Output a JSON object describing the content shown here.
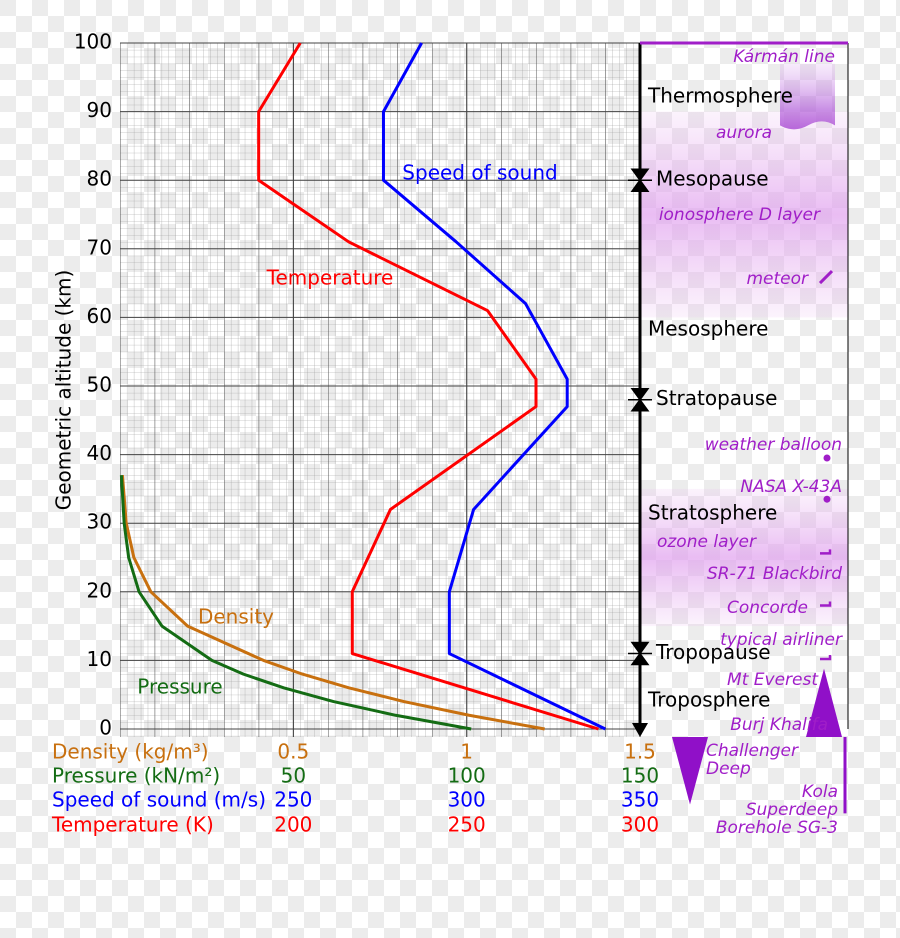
{
  "chart_data": {
    "type": "line",
    "y_label": "Geometric altitude (km)",
    "ylim": [
      0,
      100
    ],
    "yticks": [
      0,
      10,
      20,
      30,
      40,
      50,
      60,
      70,
      80,
      90,
      100
    ],
    "grid": true,
    "x_axes": [
      {
        "label": "Density (kg/m³)",
        "color": "#c8700f",
        "xlim": [
          0,
          1.5
        ],
        "xticks": [
          0.5,
          1,
          1.5
        ]
      },
      {
        "label": "Pressure (kN/m²)",
        "color": "#146c14",
        "xlim": [
          0,
          150
        ],
        "xticks": [
          50,
          100,
          150
        ]
      },
      {
        "label": "Speed of sound (m/s)",
        "color": "#0000ff",
        "xlim": [
          200,
          350
        ],
        "xticks": [
          250,
          300,
          350
        ]
      },
      {
        "label": "Temperature (K)",
        "color": "#ff0000",
        "xlim": [
          150,
          300
        ],
        "xticks": [
          200,
          250,
          300
        ]
      }
    ],
    "series": [
      {
        "name": "Speed of sound",
        "axis": 2,
        "color": "#0000ff",
        "altitude": [
          0,
          11,
          20,
          32,
          47,
          51,
          62,
          71,
          80,
          90,
          100
        ],
        "values": [
          340,
          295,
          295,
          302,
          329,
          329,
          317,
          297,
          276,
          276,
          287
        ]
      },
      {
        "name": "Temperature",
        "axis": 3,
        "color": "#ff0000",
        "altitude": [
          0,
          11,
          20,
          32,
          47,
          51,
          61,
          71,
          80,
          90,
          100
        ],
        "values": [
          288,
          217,
          217,
          228,
          270,
          270,
          256,
          216,
          190,
          190,
          202
        ]
      },
      {
        "name": "Density",
        "axis": 0,
        "color": "#c8700f",
        "altitude": [
          0,
          2,
          4,
          6,
          8,
          10,
          15,
          20,
          25,
          30,
          37
        ],
        "values": [
          1.225,
          1.007,
          0.819,
          0.66,
          0.526,
          0.414,
          0.195,
          0.089,
          0.04,
          0.018,
          0.007
        ]
      },
      {
        "name": "Pressure",
        "axis": 1,
        "color": "#146c14",
        "altitude": [
          0,
          2,
          4,
          6,
          8,
          10,
          15,
          20,
          25,
          30,
          37
        ],
        "values": [
          101.3,
          79.5,
          61.6,
          47.2,
          35.6,
          26.5,
          12.1,
          5.5,
          2.5,
          1.2,
          0.4
        ]
      }
    ],
    "boundaries": [
      {
        "name": "Mesopause",
        "altitude": 80
      },
      {
        "name": "Stratopause",
        "altitude": 48
      },
      {
        "name": "Tropopause",
        "altitude": 11
      }
    ],
    "layers": [
      "Thermosphere",
      "Mesosphere",
      "Stratosphere",
      "Troposphere"
    ],
    "annotations": [
      {
        "lines": [
          "Kármán line"
        ],
        "altitude": 100
      },
      {
        "lines": [
          "aurora"
        ],
        "range": [
          88,
          97
        ]
      },
      {
        "lines": [
          "ionosphere D layer"
        ],
        "range": [
          60,
          90
        ]
      },
      {
        "lines": [
          "meteor"
        ],
        "altitude": 65
      },
      {
        "lines": [
          "weather balloon"
        ],
        "altitude": 39.5
      },
      {
        "lines": [
          "NASA X-43A"
        ],
        "altitude": 33.5
      },
      {
        "lines": [
          "ozone layer"
        ],
        "range": [
          15,
          35
        ]
      },
      {
        "lines": [
          "SR-71 Blackbird"
        ],
        "altitude": 25.9
      },
      {
        "lines": [
          "Concorde"
        ],
        "altitude": 18.3
      },
      {
        "lines": [
          "typical airliner"
        ],
        "altitude": 10.5
      },
      {
        "lines": [
          "Mt Everest"
        ],
        "altitude": 8.8
      },
      {
        "lines": [
          "Burj Khalifa"
        ],
        "altitude": 0.8
      },
      {
        "lines": [
          "Challenger",
          "Deep"
        ],
        "altitude": -11
      },
      {
        "lines": [
          "Kola",
          "Superdeep",
          "Borehole SG-3"
        ],
        "altitude": -12.3
      }
    ]
  }
}
